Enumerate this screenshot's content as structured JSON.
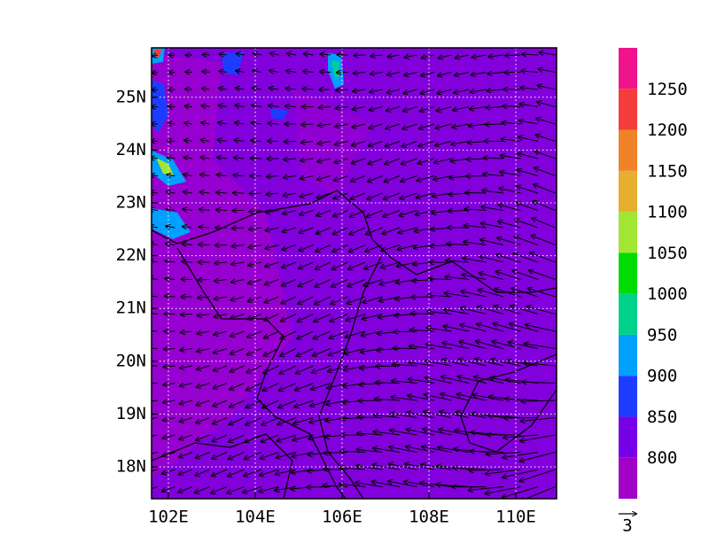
{
  "map": {
    "lon_ticks": [
      {
        "value": 102,
        "label": "102E"
      },
      {
        "value": 104,
        "label": "104E"
      },
      {
        "value": 106,
        "label": "106E"
      },
      {
        "value": 108,
        "label": "108E"
      },
      {
        "value": 110,
        "label": "110E"
      }
    ],
    "lat_ticks": [
      {
        "value": 18,
        "label": "18N"
      },
      {
        "value": 19,
        "label": "19N"
      },
      {
        "value": 20,
        "label": "20N"
      },
      {
        "value": 21,
        "label": "21N"
      },
      {
        "value": 22,
        "label": "22N"
      },
      {
        "value": 23,
        "label": "23N"
      },
      {
        "value": 24,
        "label": "24N"
      },
      {
        "value": 25,
        "label": "25N"
      }
    ],
    "colorbar": {
      "levels": [
        800,
        850,
        900,
        950,
        1000,
        1050,
        1100,
        1150,
        1200,
        1250
      ],
      "colors": [
        "#a000c8",
        "#7800e6",
        "#1e3cff",
        "#00a0ff",
        "#00d28c",
        "#00dc00",
        "#a0e632",
        "#e6af2d",
        "#f08228",
        "#f53c3c",
        "#f0148c"
      ]
    },
    "reference_vector": 3
  }
}
